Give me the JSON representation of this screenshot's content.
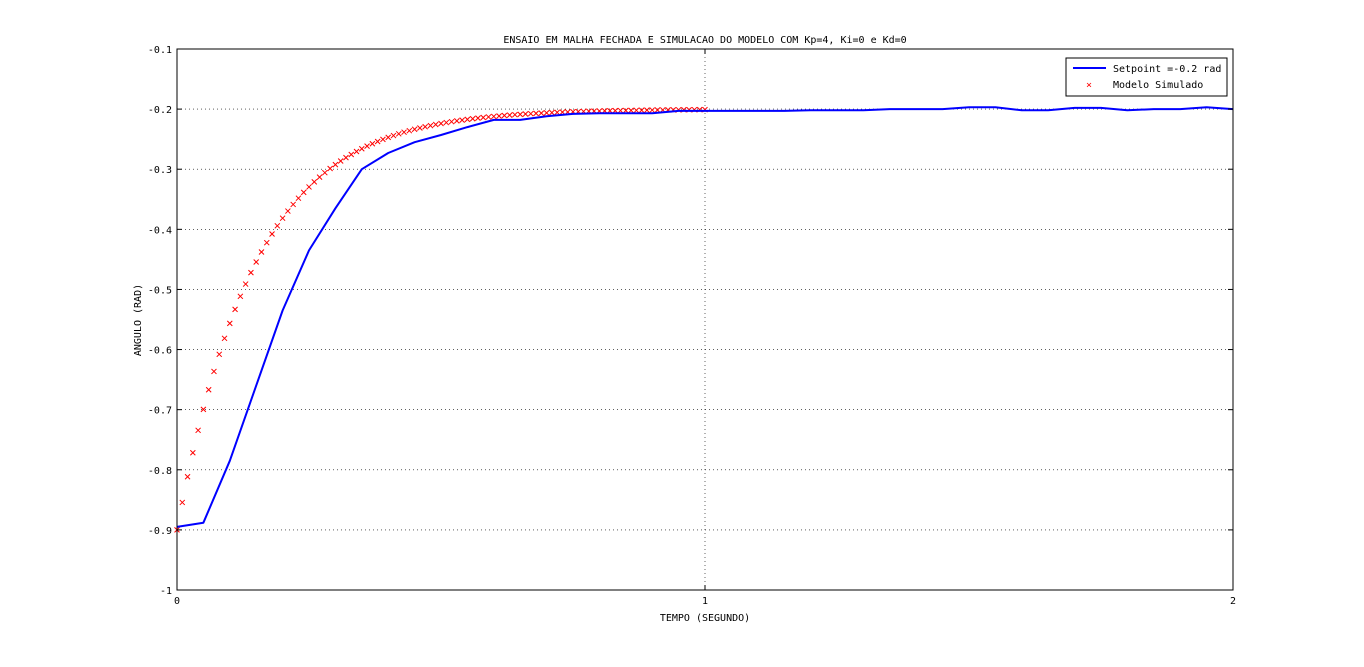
{
  "chart_data": {
    "type": "line",
    "title": "ENSAIO EM MALHA FECHADA E SIMULACAO DO MODELO COM Kp=4, Ki=0 e Kd=0",
    "xlabel": "TEMPO (SEGUNDO)",
    "ylabel": "ANGULO (RAD)",
    "xlim": [
      0,
      2
    ],
    "ylim": [
      -1,
      -0.1
    ],
    "xticks": [
      0,
      1,
      2
    ],
    "xtick_labels": [
      "0",
      "1",
      "2"
    ],
    "yticks": [
      -1,
      -0.9,
      -0.8,
      -0.7,
      -0.6,
      -0.5,
      -0.4,
      -0.3,
      -0.2,
      -0.1
    ],
    "ytick_labels": [
      "-1",
      "-0.9",
      "-0.8",
      "-0.7",
      "-0.6",
      "-0.5",
      "-0.4",
      "-0.3",
      "-0.2",
      "-0.1"
    ],
    "grid": true,
    "legend_position": "top-right",
    "series": [
      {
        "name": "Setpoint =-0.2 rad",
        "color": "#0000ff",
        "style": "line",
        "x": [
          0,
          0.05,
          0.1,
          0.15,
          0.2,
          0.25,
          0.3,
          0.35,
          0.4,
          0.45,
          0.5,
          0.55,
          0.6,
          0.65,
          0.7,
          0.75,
          0.8,
          0.85,
          0.9,
          0.95,
          1.0,
          1.05,
          1.1,
          1.15,
          1.2,
          1.25,
          1.3,
          1.35,
          1.4,
          1.45,
          1.5,
          1.55,
          1.6,
          1.65,
          1.7,
          1.75,
          1.8,
          1.85,
          1.9,
          1.95,
          2.0
        ],
        "y": [
          -0.895,
          -0.888,
          -0.785,
          -0.66,
          -0.535,
          -0.435,
          -0.365,
          -0.3,
          -0.273,
          -0.255,
          -0.243,
          -0.23,
          -0.218,
          -0.218,
          -0.212,
          -0.208,
          -0.207,
          -0.207,
          -0.207,
          -0.203,
          -0.203,
          -0.203,
          -0.203,
          -0.203,
          -0.202,
          -0.202,
          -0.202,
          -0.2,
          -0.2,
          -0.2,
          -0.197,
          -0.197,
          -0.202,
          -0.202,
          -0.198,
          -0.198,
          -0.202,
          -0.2,
          -0.2,
          -0.197,
          -0.2
        ]
      },
      {
        "name": "Modelo Simulado",
        "color": "#ff0000",
        "style": "marker-x"
      }
    ]
  }
}
